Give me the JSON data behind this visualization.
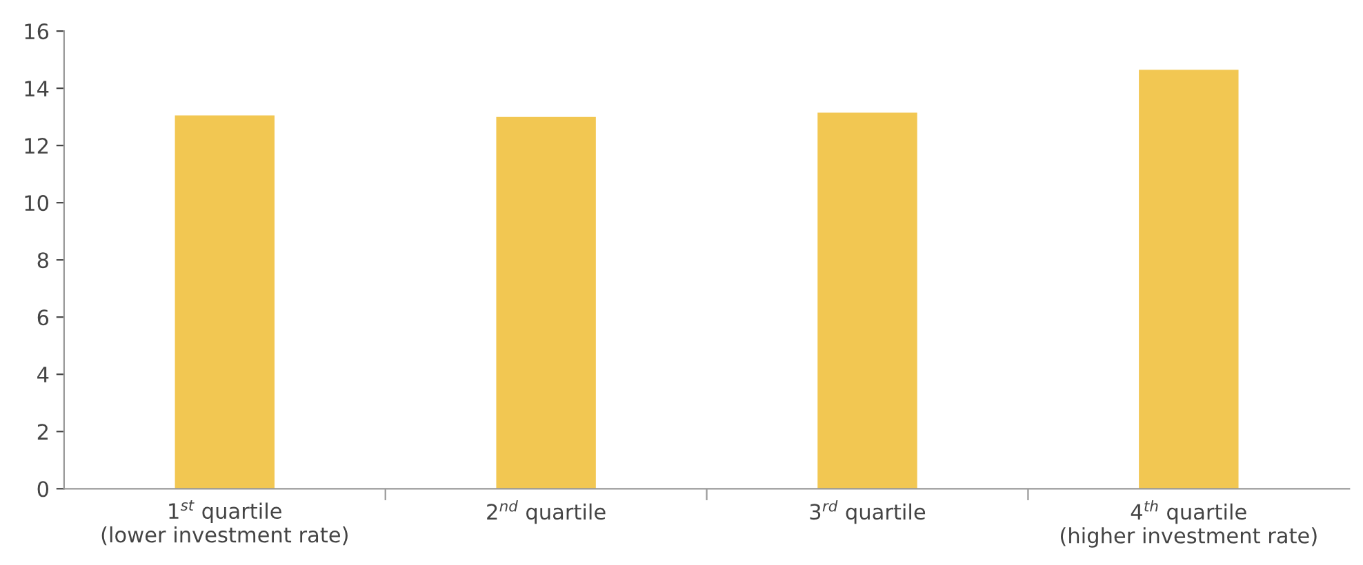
{
  "chart_data": {
    "type": "bar",
    "categories": [
      "1$^{st}$ quartile\n(lower investment rate)",
      "2$^{nd}$ quartile",
      "3$^{rd}$ quartile",
      "4$^{th}$ quartile\n(higher investment rate)"
    ],
    "values": [
      13.05,
      13.0,
      13.15,
      14.65
    ],
    "color": "#f2c752",
    "ylim": [
      0,
      16
    ],
    "yticks": [
      0,
      2,
      4,
      6,
      8,
      10,
      12,
      14,
      16
    ],
    "grid": false
  }
}
